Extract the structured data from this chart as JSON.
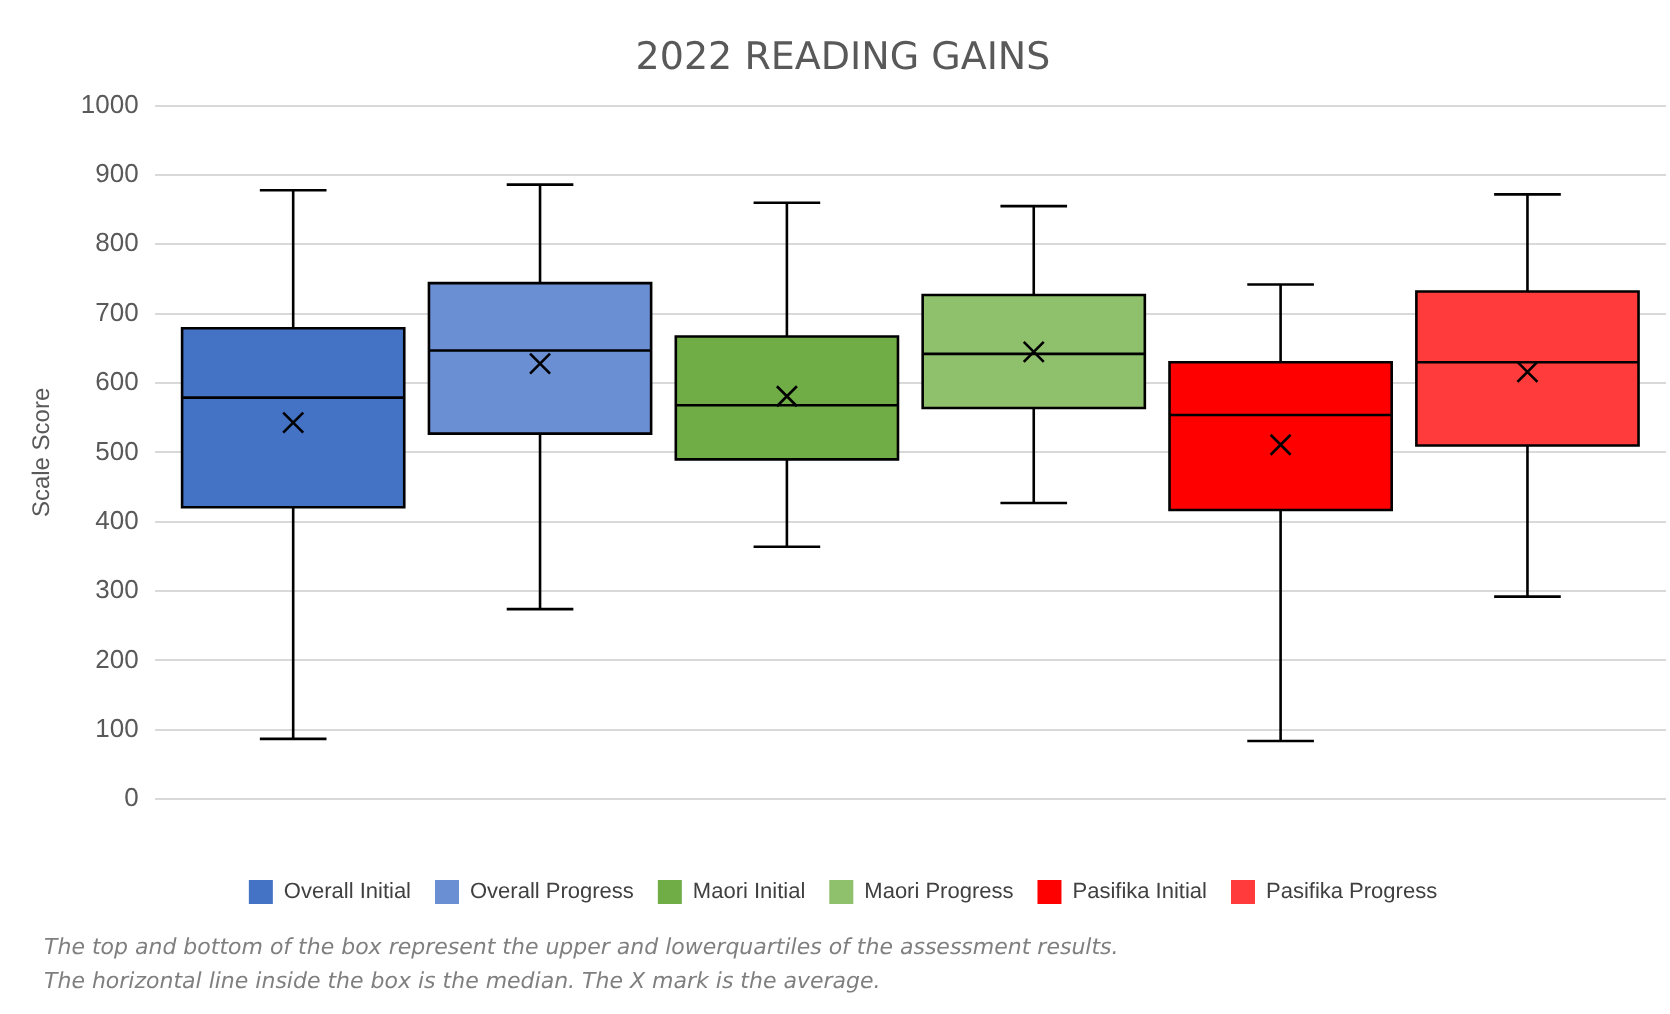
{
  "chart_data": {
    "type": "box",
    "title": "2022 READING GAINS",
    "ylabel": "Scale Score",
    "categories": [
      null
    ],
    "series": [
      {
        "name": "Overall Initial",
        "color": "#4472c4",
        "boxes": [
          {
            "low": 87,
            "q1": 421,
            "median": 579,
            "q3": 679,
            "high": 878,
            "mean": 543
          }
        ]
      },
      {
        "name": "Overall Progress",
        "color": "#6b8fd3",
        "boxes": [
          {
            "low": 274,
            "q1": 527,
            "median": 647,
            "q3": 744,
            "high": 886,
            "mean": 628
          }
        ]
      },
      {
        "name": "Maori Initial",
        "color": "#70ad47",
        "boxes": [
          {
            "low": 364,
            "q1": 490,
            "median": 568,
            "q3": 667,
            "high": 860,
            "mean": 581
          }
        ]
      },
      {
        "name": "Maori Progress",
        "color": "#8fc06c",
        "boxes": [
          {
            "low": 427,
            "q1": 564,
            "median": 642,
            "q3": 727,
            "high": 855,
            "mean": 645
          }
        ]
      },
      {
        "name": "Pasifika Initial",
        "color": "#ff0000",
        "boxes": [
          {
            "low": 84,
            "q1": 417,
            "median": 554,
            "q3": 630,
            "high": 742,
            "mean": 511
          }
        ]
      },
      {
        "name": "Pasifika Progress",
        "color": "#ff3b3b",
        "boxes": [
          {
            "low": 292,
            "q1": 510,
            "median": 630,
            "q3": 732,
            "high": 872,
            "mean": 616
          }
        ]
      }
    ],
    "ylim": [
      0,
      1000
    ],
    "yticks": [
      0,
      100,
      200,
      300,
      400,
      500,
      600,
      700,
      800,
      900,
      1000
    ],
    "grid": "y",
    "legend": "bottom",
    "marker": "cross",
    "annotations": [
      "The top and bottom of the box represent the upper and lowerquartiles of the assessment results.",
      "The horizontal line inside the box is the median. The X mark is the average."
    ]
  }
}
